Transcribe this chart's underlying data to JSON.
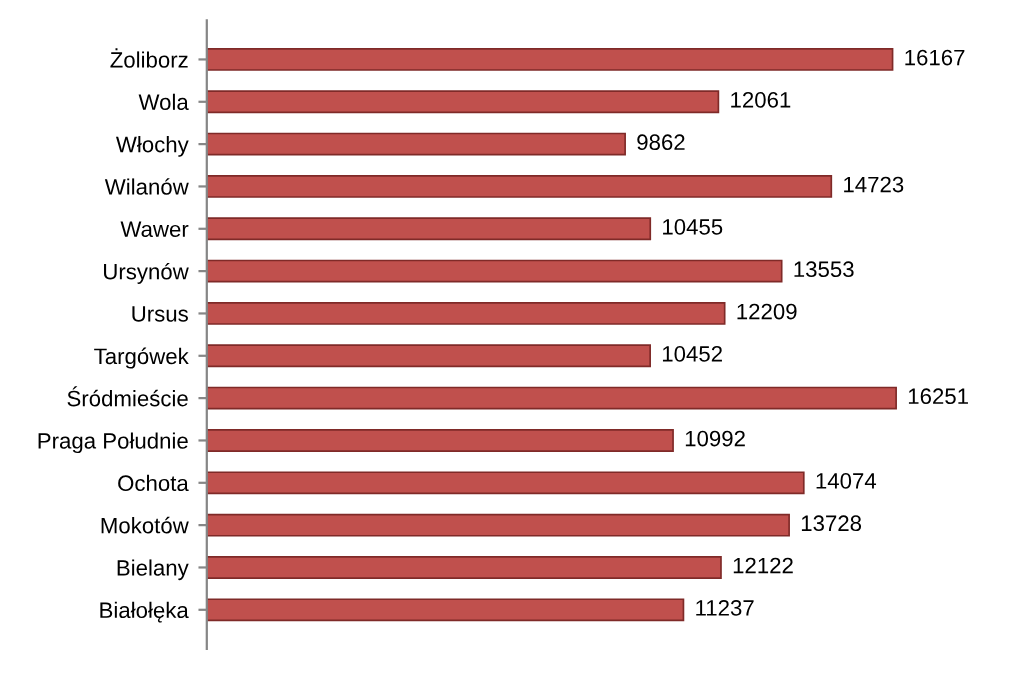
{
  "chart_data": {
    "type": "bar",
    "orientation": "horizontal",
    "categories": [
      "Żoliborz",
      "Wola",
      "Włochy",
      "Wilanów",
      "Wawer",
      "Ursynów",
      "Ursus",
      "Targówek",
      "Śródmieście",
      "Praga Południe",
      "Ochota",
      "Mokotów",
      "Bielany",
      "Białołęka"
    ],
    "values": [
      16167,
      12061,
      9862,
      14723,
      10455,
      13553,
      12209,
      10452,
      16251,
      10992,
      14074,
      13728,
      12122,
      11237
    ],
    "color": "#c0504d",
    "data_labels": true,
    "tick_labels": "y",
    "grid": false,
    "legend": false
  }
}
